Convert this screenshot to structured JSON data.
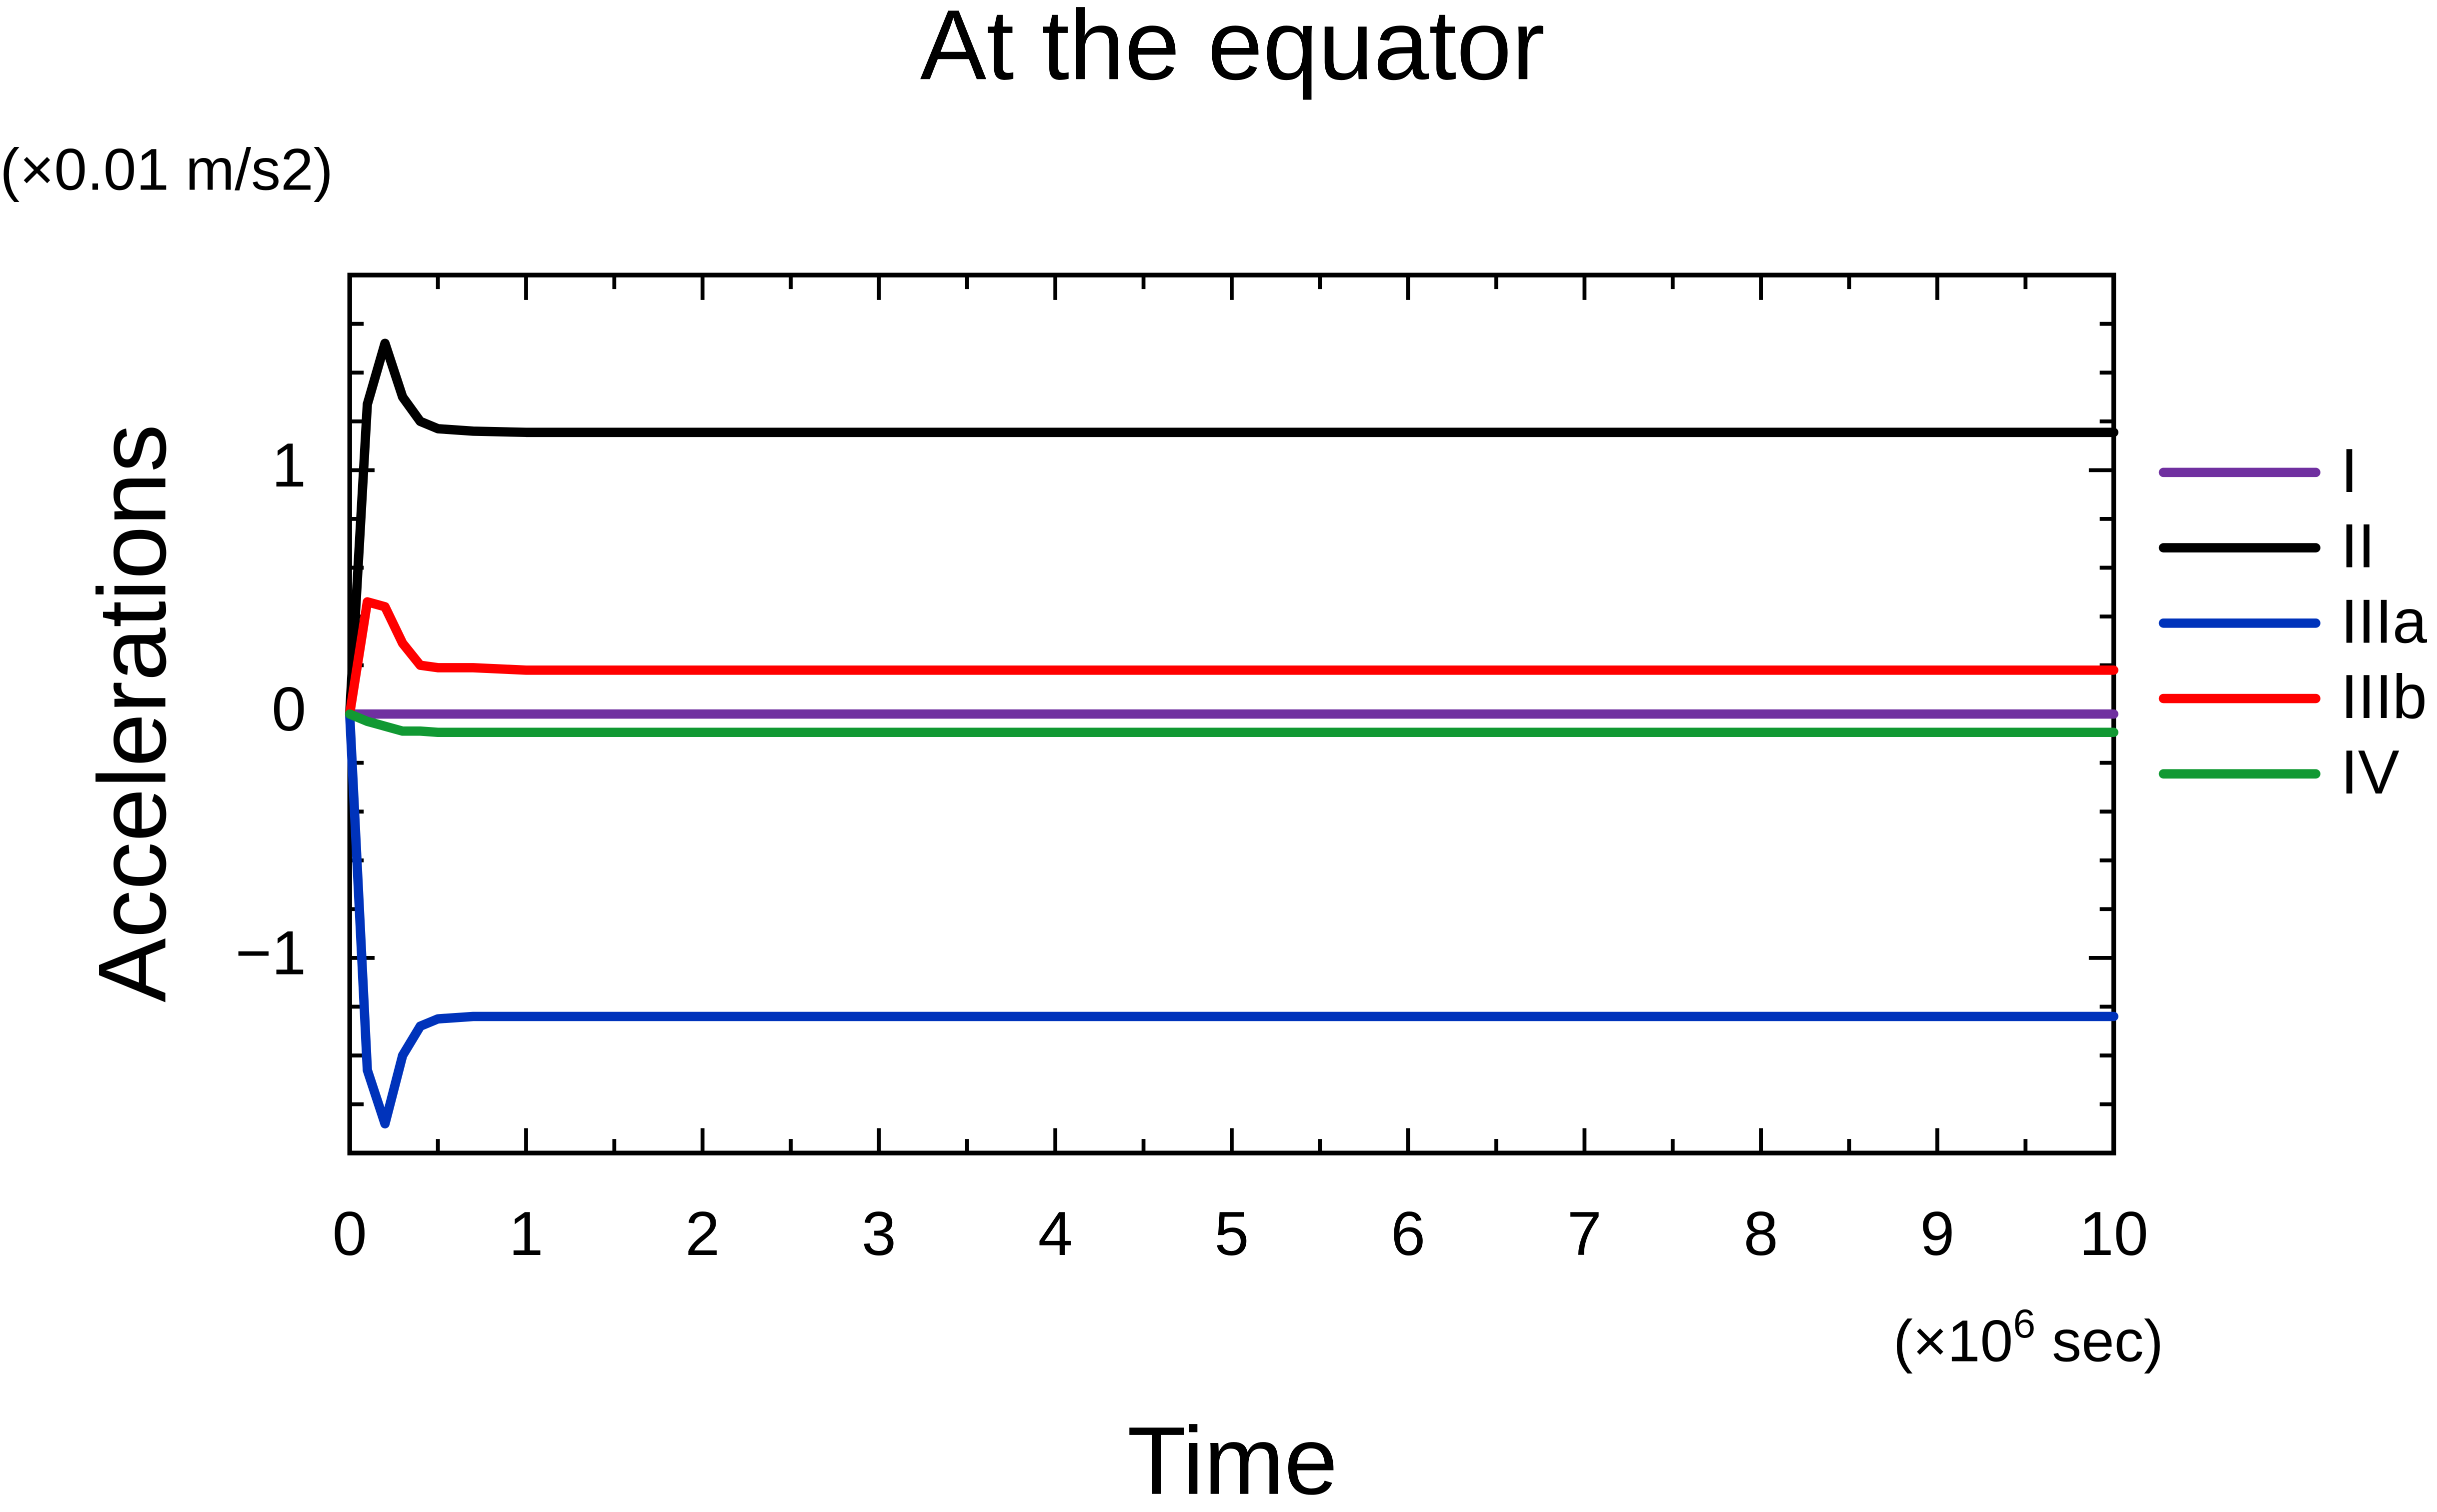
{
  "chart_data": {
    "type": "line",
    "title": "At the equator",
    "y_unit": "(×0.01 m/s2)",
    "y_label": "Accelerations",
    "x_label": "Time",
    "x_unit": {
      "prefix": "(×10",
      "exponent": "6",
      "suffix": " sec)"
    },
    "x": [
      0,
      0.1,
      0.2,
      0.3,
      0.4,
      0.5,
      0.7,
      1,
      2,
      3,
      4,
      5,
      6,
      7,
      8,
      9,
      10
    ],
    "series": [
      {
        "name": "I",
        "color": "#7030a0",
        "values": [
          0,
          0,
          0,
          0,
          0,
          0,
          0,
          0,
          0,
          0,
          0,
          0,
          0,
          0,
          0,
          0,
          0
        ]
      },
      {
        "name": "II",
        "color": "#000000",
        "values": [
          0,
          1.27,
          1.52,
          1.3,
          1.2,
          1.17,
          1.16,
          1.155,
          1.155,
          1.155,
          1.155,
          1.155,
          1.155,
          1.155,
          1.155,
          1.155,
          1.155
        ]
      },
      {
        "name": "IIIa",
        "color": "#0033bb",
        "values": [
          0,
          -1.46,
          -1.68,
          -1.4,
          -1.28,
          -1.25,
          -1.24,
          -1.24,
          -1.24,
          -1.24,
          -1.24,
          -1.24,
          -1.24,
          -1.24,
          -1.24,
          -1.24,
          -1.24
        ]
      },
      {
        "name": "IIIb",
        "color": "#ff0000",
        "values": [
          0,
          0.46,
          0.44,
          0.29,
          0.2,
          0.19,
          0.19,
          0.18,
          0.18,
          0.18,
          0.18,
          0.18,
          0.18,
          0.18,
          0.18,
          0.18,
          0.18
        ]
      },
      {
        "name": "IV",
        "color": "#119933",
        "values": [
          0,
          -0.03,
          -0.05,
          -0.07,
          -0.07,
          -0.075,
          -0.075,
          -0.075,
          -0.075,
          -0.075,
          -0.075,
          -0.075,
          -0.075,
          -0.075,
          -0.075,
          -0.075,
          -0.075
        ]
      }
    ],
    "xlim": [
      0,
      10
    ],
    "ylim": [
      -1.8,
      1.8
    ],
    "xticks": [
      0,
      1,
      2,
      3,
      4,
      5,
      6,
      7,
      8,
      9,
      10
    ],
    "yticks": [
      {
        "value": -1,
        "label": "−1"
      },
      0,
      1
    ],
    "xticks_minor": [
      0.5,
      1.5,
      2.5,
      3.5,
      4.5,
      5.5,
      6.5,
      7.5,
      8.5,
      9.5
    ],
    "yticks_minor": [
      -1.6,
      -1.4,
      -1.2,
      -0.8,
      -0.6,
      -0.4,
      -0.2,
      0.2,
      0.4,
      0.6,
      0.8,
      1.2,
      1.4,
      1.6
    ],
    "legend": "right",
    "grid": false
  }
}
